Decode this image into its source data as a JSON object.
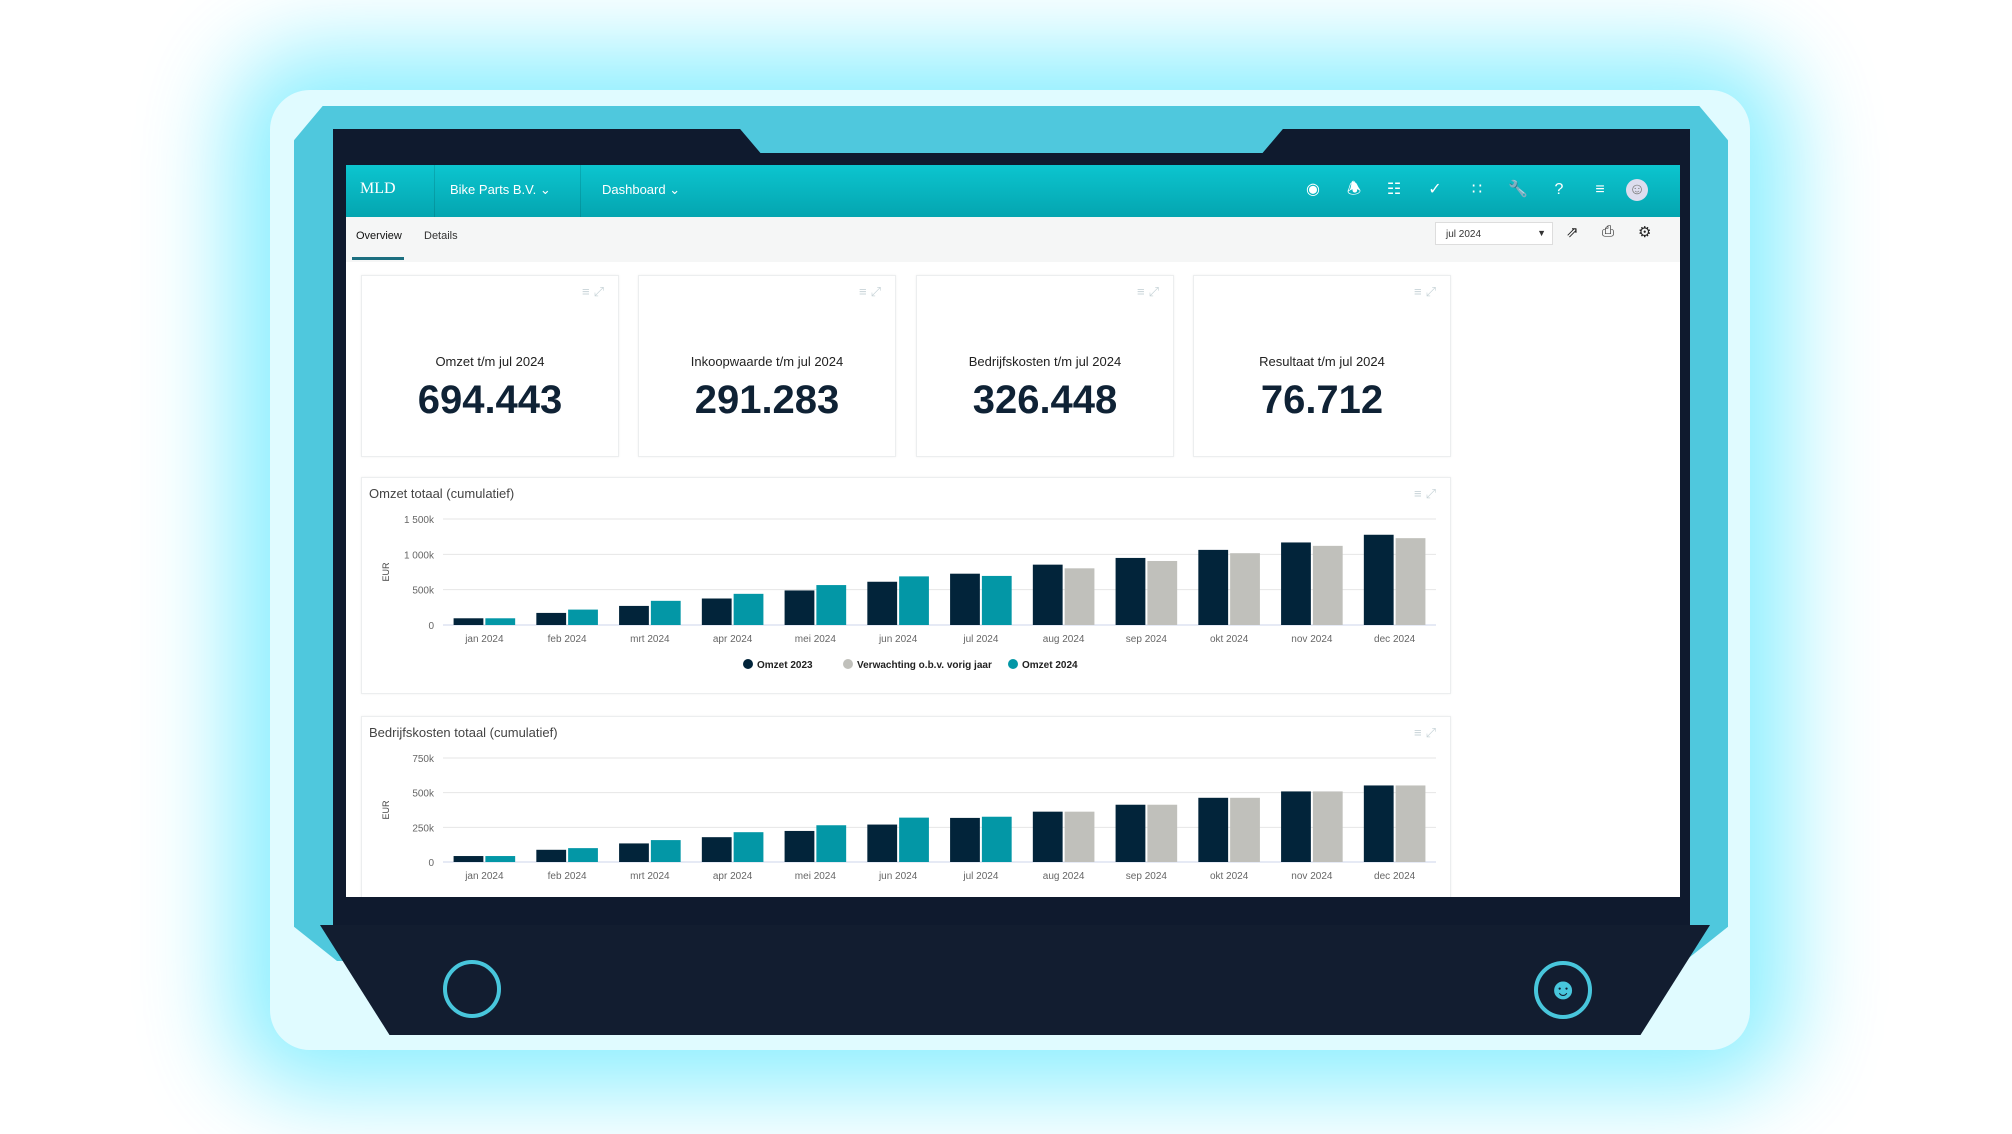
{
  "header": {
    "logo": "MLD",
    "company": "Bike Parts B.V.",
    "menu": "Dashboard",
    "icons": [
      "eye-icon",
      "bell-icon",
      "workflow-icon",
      "check-circle-icon",
      "apps-grid-icon",
      "wrench-icon",
      "help-icon",
      "menu-icon",
      "avatar"
    ]
  },
  "tabs": [
    {
      "label": "Overview",
      "active": true
    },
    {
      "label": "Details",
      "active": false
    }
  ],
  "toolbar": {
    "period": "jul 2024",
    "icons": [
      "export-icon",
      "print-icon",
      "settings-icon"
    ]
  },
  "kpis": [
    {
      "label": "Omzet t/m jul 2024",
      "value": "694.443"
    },
    {
      "label": "Inkoopwaarde t/m jul 2024",
      "value": "291.283"
    },
    {
      "label": "Bedrijfskosten t/m jul 2024",
      "value": "326.448"
    },
    {
      "label": "Resultaat t/m jul 2024",
      "value": "76.712"
    }
  ],
  "colors": {
    "accent": "#04a5b0",
    "omzet2023": "#02243a",
    "verwachting": "#c0c0bb",
    "omzet2024": "#0397a6"
  },
  "chart_data": [
    {
      "type": "bar",
      "title": "Omzet totaal (cumulatief)",
      "ylabel": "EUR",
      "ylim": [
        0,
        1500000
      ],
      "yticks": [
        "0",
        "500k",
        "1 000k",
        "1 500k"
      ],
      "ytick_values": [
        0,
        500000,
        1000000,
        1500000
      ],
      "categories": [
        "jan 2024",
        "feb 2024",
        "mrt 2024",
        "apr 2024",
        "mei 2024",
        "jun 2024",
        "jul 2024",
        "aug 2024",
        "sep 2024",
        "okt 2024",
        "nov 2024",
        "dec 2024"
      ],
      "legend_position": "bottom",
      "grid": true,
      "series": [
        {
          "name": "Omzet 2023",
          "values": [
            95000,
            171000,
            270000,
            375000,
            489000,
            612000,
            726000,
            854000,
            949000,
            1063000,
            1168000,
            1277000
          ]
        },
        {
          "name": "Verwachting o.b.v. vorig jaar",
          "values": [
            null,
            null,
            null,
            null,
            null,
            null,
            null,
            802000,
            906000,
            1016000,
            1120000,
            1229000
          ]
        },
        {
          "name": "Omzet 2024",
          "values": [
            95000,
            218000,
            342000,
            441000,
            565000,
            688000,
            694443,
            null,
            null,
            null,
            null,
            null
          ]
        }
      ]
    },
    {
      "type": "bar",
      "title": "Bedrijfskosten totaal (cumulatief)",
      "ylabel": "EUR",
      "ylim": [
        0,
        750000
      ],
      "yticks": [
        "0",
        "250k",
        "500k",
        "750k"
      ],
      "ytick_values": [
        0,
        250000,
        500000,
        750000
      ],
      "categories": [
        "jan 2024",
        "feb 2024",
        "mrt 2024",
        "apr 2024",
        "mei 2024",
        "jun 2024",
        "jul 2024",
        "aug 2024",
        "sep 2024",
        "okt 2024",
        "nov 2024",
        "dec 2024"
      ],
      "grid": true,
      "series": [
        {
          "name": "Omzet 2023",
          "values": [
            43000,
            88000,
            134000,
            179000,
            224000,
            270000,
            318000,
            363000,
            413000,
            463000,
            509000,
            552000
          ]
        },
        {
          "name": "Verwachting o.b.v. vorig jaar",
          "values": [
            null,
            null,
            null,
            null,
            null,
            null,
            null,
            363000,
            413000,
            463000,
            509000,
            552000
          ]
        },
        {
          "name": "Omzet 2024",
          "values": [
            43000,
            100000,
            158000,
            215000,
            265000,
            320000,
            326448,
            null,
            null,
            null,
            null,
            null
          ]
        }
      ]
    }
  ]
}
